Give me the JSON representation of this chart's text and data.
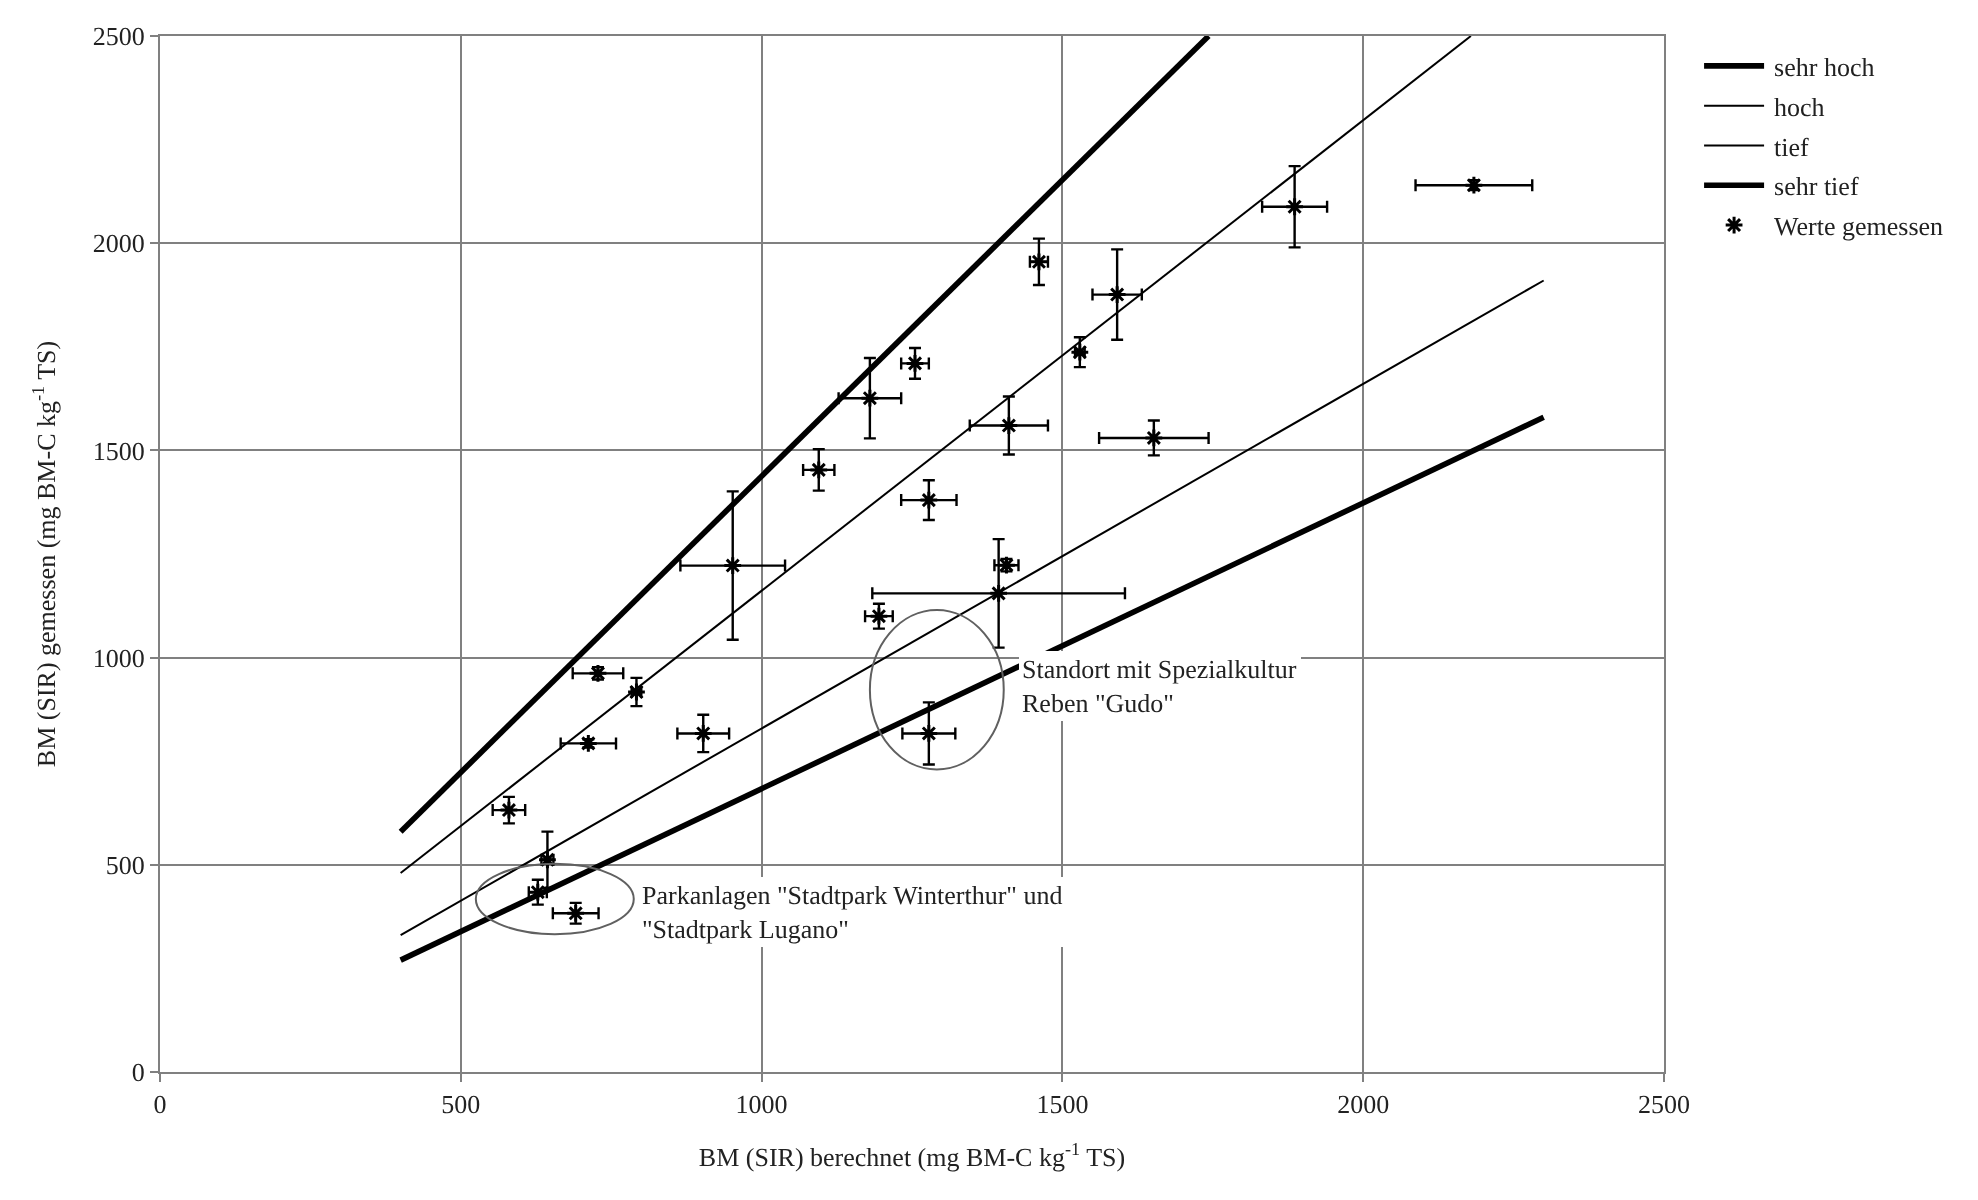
{
  "chart_data": {
    "type": "scatter",
    "xlabel": "BM (SIR) berechnet (mg BM-C kg$^{-1}$ TS)",
    "ylabel": "BM (SIR) gemessen (mg BM-C kg$^{-1}$ TS)",
    "xlim": [
      0,
      2500
    ],
    "xticks": [
      0,
      500,
      1000,
      1500,
      2000,
      2500
    ],
    "ylim": [
      0,
      2500
    ],
    "yticks": [
      0,
      500,
      1000,
      1500,
      2000,
      2500
    ],
    "grid": true,
    "legend": "top right",
    "marker": "cross",
    "series": [
      {
        "name": "Werte gemessen",
        "color": "#000000",
        "x": [
          580,
          712,
          728,
          792,
          903,
          644,
          628,
          691,
          1278,
          952,
          1095,
          1180,
          1255,
          1278,
          1195,
          1394,
          1407,
          1411,
          1652,
          1529,
          1461,
          1591,
          1886,
          2184
        ],
        "values": [
          632,
          793,
          962,
          917,
          817,
          512,
          434,
          383,
          817,
          1222,
          1453,
          1626,
          1710,
          1380,
          1100,
          1155,
          1223,
          1560,
          1530,
          1737,
          1955,
          1876,
          2088,
          2140
        ],
        "xerrors": [
          27,
          46,
          42,
          8,
          43,
          10,
          15,
          38,
          44,
          87,
          26,
          52,
          23,
          46,
          23,
          210,
          20,
          65,
          91,
          8,
          15,
          41,
          54,
          97
        ],
        "errors": [
          32,
          10,
          15,
          34,
          45,
          68,
          30,
          25,
          75,
          179,
          50,
          97,
          37,
          48,
          30,
          131,
          15,
          70,
          42,
          36,
          56,
          109,
          98,
          12
        ]
      },
      {
        "name": "sehr hoch",
        "type": "line",
        "marker": "none",
        "color": "#000000",
        "x": [
          400,
          1743
        ],
        "values": [
          580,
          2500
        ]
      },
      {
        "name": "hoch",
        "type": "line",
        "marker": "none",
        "color": "#000000",
        "x": [
          400,
          2179
        ],
        "values": [
          480,
          2500
        ]
      },
      {
        "name": "tief",
        "type": "line",
        "marker": "none",
        "color": "#000000",
        "x": [
          400,
          2300
        ],
        "values": [
          330,
          1910
        ]
      },
      {
        "name": "sehr tief",
        "type": "line",
        "marker": "none",
        "color": "#000000",
        "x": [
          400,
          2300
        ],
        "values": [
          270,
          1580
        ]
      }
    ],
    "annotations": [
      "Standort mit Spezialkultur\nReben \"Gudo\"",
      "Parkanlagen \"Stadtpark Winterthur\" und\n\"Stadtpark Lugano\""
    ]
  }
}
